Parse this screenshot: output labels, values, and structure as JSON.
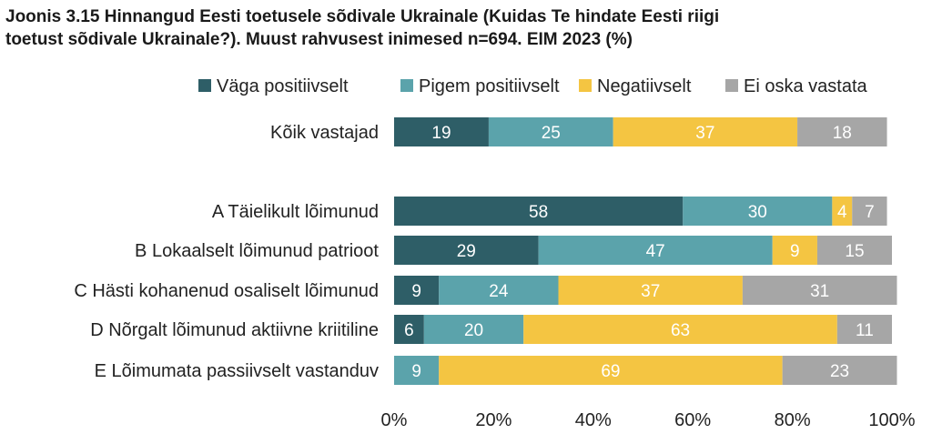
{
  "title": {
    "line1": "Joonis 3.15 Hinnangud Eesti toetusele sõdivale Ukrainale (Kuidas Te hindate Eesti riigi",
    "line2": "toetust sõdivale Ukrainale?). Muust rahvusest inimesed  n=694. EIM 2023 (%)"
  },
  "chart_data": {
    "type": "bar",
    "orientation": "horizontal",
    "stacked": true,
    "title": "Joonis 3.15 Hinnangud Eesti toetusele sõdivale Ukrainale (Kuidas Te hindate Eesti riigi toetust sõdivale Ukrainale?). Muust rahvusest inimesed  n=694. EIM 2023 (%)",
    "xlim": [
      0,
      100
    ],
    "x_ticks": [
      "0%",
      "20%",
      "40%",
      "60%",
      "80%",
      "100%"
    ],
    "legend_position": "top-right",
    "categories": [
      "Kõik vastajad",
      "A Täielikult lõimunud",
      "B Lokaalselt lõimunud patrioot",
      "C Hästi kohanenud osaliselt lõimunud",
      "D Nõrgalt lõimunud aktiivne kriitiline",
      "E Lõimumata passiivselt vastanduv"
    ],
    "series": [
      {
        "name": "Väga positiivselt",
        "color": "#2e5e67",
        "label_color": "#ffffff",
        "values": [
          19,
          58,
          29,
          9,
          6,
          0
        ]
      },
      {
        "name": "Pigem positiivselt",
        "color": "#5ba3ab",
        "label_color": "#ffffff",
        "values": [
          25,
          30,
          47,
          24,
          20,
          9
        ]
      },
      {
        "name": "Negatiivselt",
        "color": "#f4c542",
        "label_color": "#ffffff",
        "values": [
          37,
          4,
          9,
          37,
          63,
          69
        ]
      },
      {
        "name": "Ei oska vastata",
        "color": "#a6a6a6",
        "label_color": "#ffffff",
        "values": [
          18,
          7,
          15,
          31,
          11,
          23
        ]
      }
    ]
  }
}
